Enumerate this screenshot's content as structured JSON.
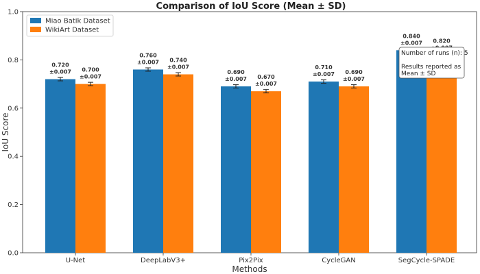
{
  "chart_data": {
    "type": "bar",
    "title": "Comparison of IoU Score (Mean ± SD)",
    "xlabel": "Methods",
    "ylabel": "IoU Score",
    "ylim": [
      0,
      1.0
    ],
    "yticks": [
      "0.0",
      "0.2",
      "0.4",
      "0.6",
      "0.8",
      "1.0"
    ],
    "categories": [
      "U-Net",
      "DeepLabV3+",
      "Pix2Pix",
      "CycleGAN",
      "SegCycle-SPADE"
    ],
    "series": [
      {
        "name": "Miao Batik Dataset",
        "color": "#1f77b4",
        "values": [
          0.72,
          0.76,
          0.69,
          0.71,
          0.84
        ],
        "errors": [
          0.007,
          0.007,
          0.007,
          0.007,
          0.007
        ],
        "value_labels": [
          "0.720",
          "0.760",
          "0.690",
          "0.710",
          "0.840"
        ],
        "error_labels": [
          "±0.007",
          "±0.007",
          "±0.007",
          "±0.007",
          "±0.007"
        ]
      },
      {
        "name": "WikiArt Dataset",
        "color": "#ff7f0e",
        "values": [
          0.7,
          0.74,
          0.67,
          0.69,
          0.82
        ],
        "errors": [
          0.007,
          0.007,
          0.007,
          0.007,
          0.007
        ],
        "value_labels": [
          "0.700",
          "0.740",
          "0.670",
          "0.690",
          "0.820"
        ],
        "error_labels": [
          "±0.007",
          "±0.007",
          "±0.007",
          "±0.007",
          "±0.007"
        ]
      }
    ],
    "legend_placement": "top-left",
    "grid": false,
    "annotation": {
      "line1": "Number of runs (n): 5",
      "line2": "Results reported as",
      "line3": "Mean ± SD",
      "placement": "top-right"
    }
  }
}
